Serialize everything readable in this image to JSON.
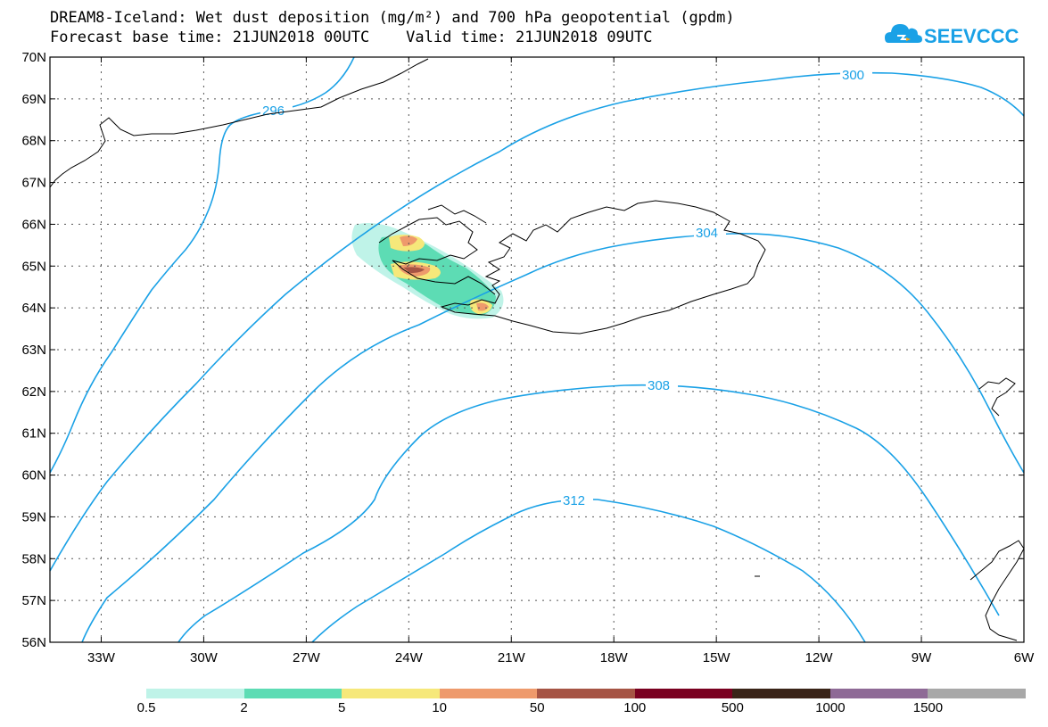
{
  "title": {
    "line1": "DREAM8-Iceland: Wet dust deposition (mg/m²) and 700 hPa geopotential (gpdm)",
    "line2": "Forecast base time: 21JUN2018 00UTC    Valid time: 21JUN2018 09UTC"
  },
  "logo": {
    "text": "SEEVCCC",
    "color": "#1aa1e6"
  },
  "map_extent": {
    "lon_min": -34.5,
    "lon_max": -6,
    "lat_min": 56,
    "lat_max": 70
  },
  "axes": {
    "lat_ticks": [
      "70N",
      "69N",
      "68N",
      "67N",
      "66N",
      "65N",
      "64N",
      "63N",
      "62N",
      "61N",
      "60N",
      "59N",
      "58N",
      "57N",
      "56N"
    ],
    "lat_values": [
      70,
      69,
      68,
      67,
      66,
      65,
      64,
      63,
      62,
      61,
      60,
      59,
      58,
      57,
      56
    ],
    "lon_ticks": [
      "33W",
      "30W",
      "27W",
      "24W",
      "21W",
      "18W",
      "15W",
      "12W",
      "9W",
      "6W"
    ],
    "lon_values": [
      -33,
      -30,
      -27,
      -24,
      -21,
      -18,
      -15,
      -12,
      -9,
      -6
    ]
  },
  "contours": [
    {
      "value": "296",
      "label": "296",
      "color": "#1aa1e6"
    },
    {
      "value": "300",
      "label": "300",
      "color": "#1aa1e6"
    },
    {
      "value": "304",
      "label": "304",
      "color": "#1aa1e6"
    },
    {
      "value": "308",
      "label": "308",
      "color": "#1aa1e6"
    },
    {
      "value": "312",
      "label": "312",
      "color": "#1aa1e6"
    }
  ],
  "colorbar": {
    "colors": [
      "#bff3e8",
      "#5ddcb4",
      "#f6e87a",
      "#ee9a6c",
      "#a65444",
      "#7a0020",
      "#3a2418",
      "#8e6a96",
      "#a8a8a8"
    ],
    "labels": [
      "0.5",
      "2",
      "5",
      "10",
      "50",
      "100",
      "500",
      "1000",
      "1500"
    ]
  },
  "dust_colors": {
    "light": "#bff3e8",
    "green": "#5ddcb4",
    "yellow": "#f6e87a",
    "orange": "#ee9a6c",
    "brown": "#a65444"
  }
}
